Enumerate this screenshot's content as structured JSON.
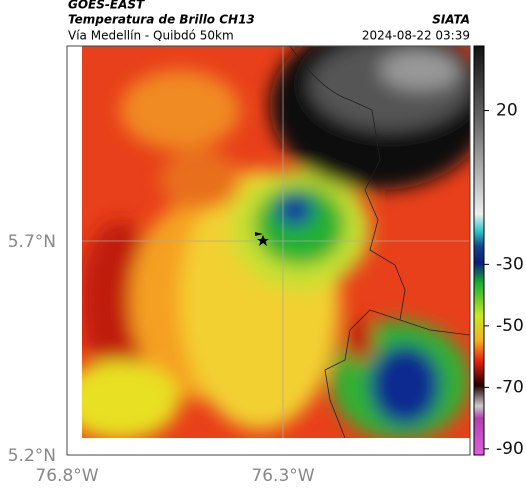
{
  "header": {
    "title": "GOES-EAST",
    "subtitle": "Temperatura de Brillo CH13",
    "place": "Vía Medellín - Quibdó 50km",
    "source": "SIATA",
    "datetime": "2024-08-22 03:39"
  },
  "map": {
    "lat_labels": [
      "5.7°N",
      "5.2°N"
    ],
    "lon_labels": [
      "76.8°W",
      "76.3°W"
    ]
  },
  "colorbar": {
    "range": [
      -92,
      41
    ],
    "ticks": [
      20,
      -30,
      -50,
      -70,
      -90
    ]
  }
}
